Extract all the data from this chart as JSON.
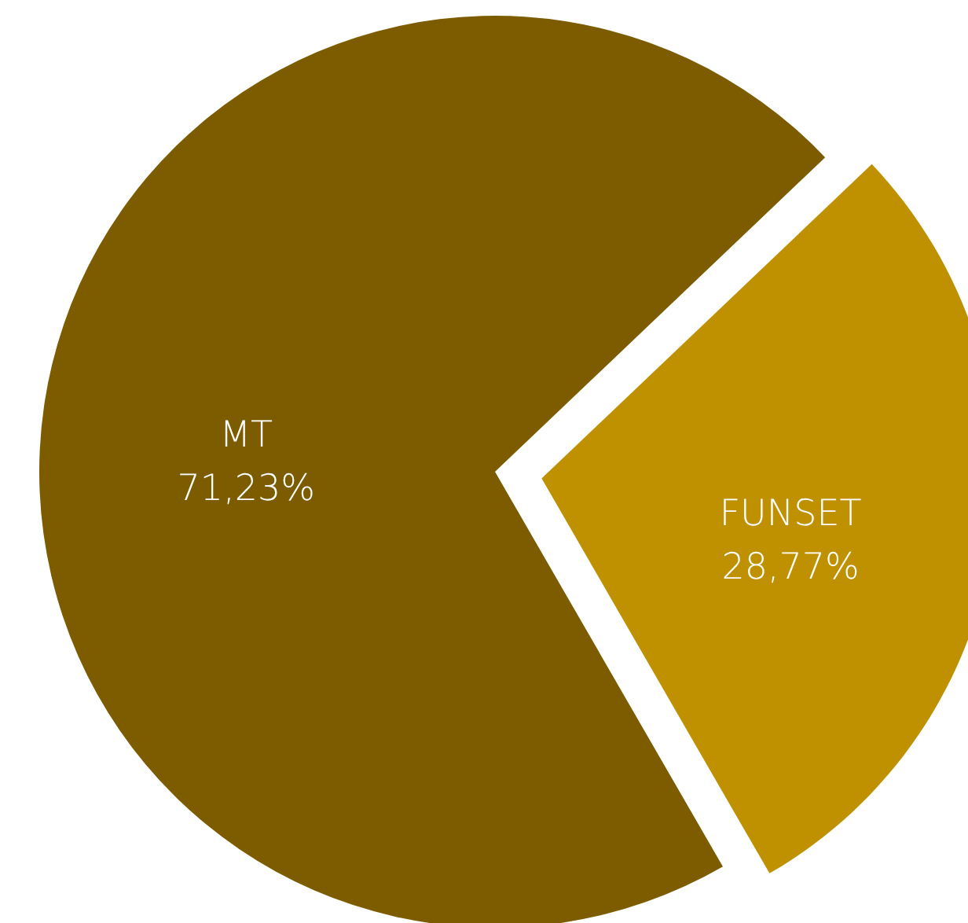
{
  "chart_data": {
    "type": "pie",
    "categories": [
      "MT",
      "FUNSET"
    ],
    "values": [
      71.23,
      28.77
    ],
    "value_labels": [
      "71,23%",
      "28,77%"
    ],
    "colors": [
      "#7d5c00",
      "#bf9000"
    ]
  }
}
